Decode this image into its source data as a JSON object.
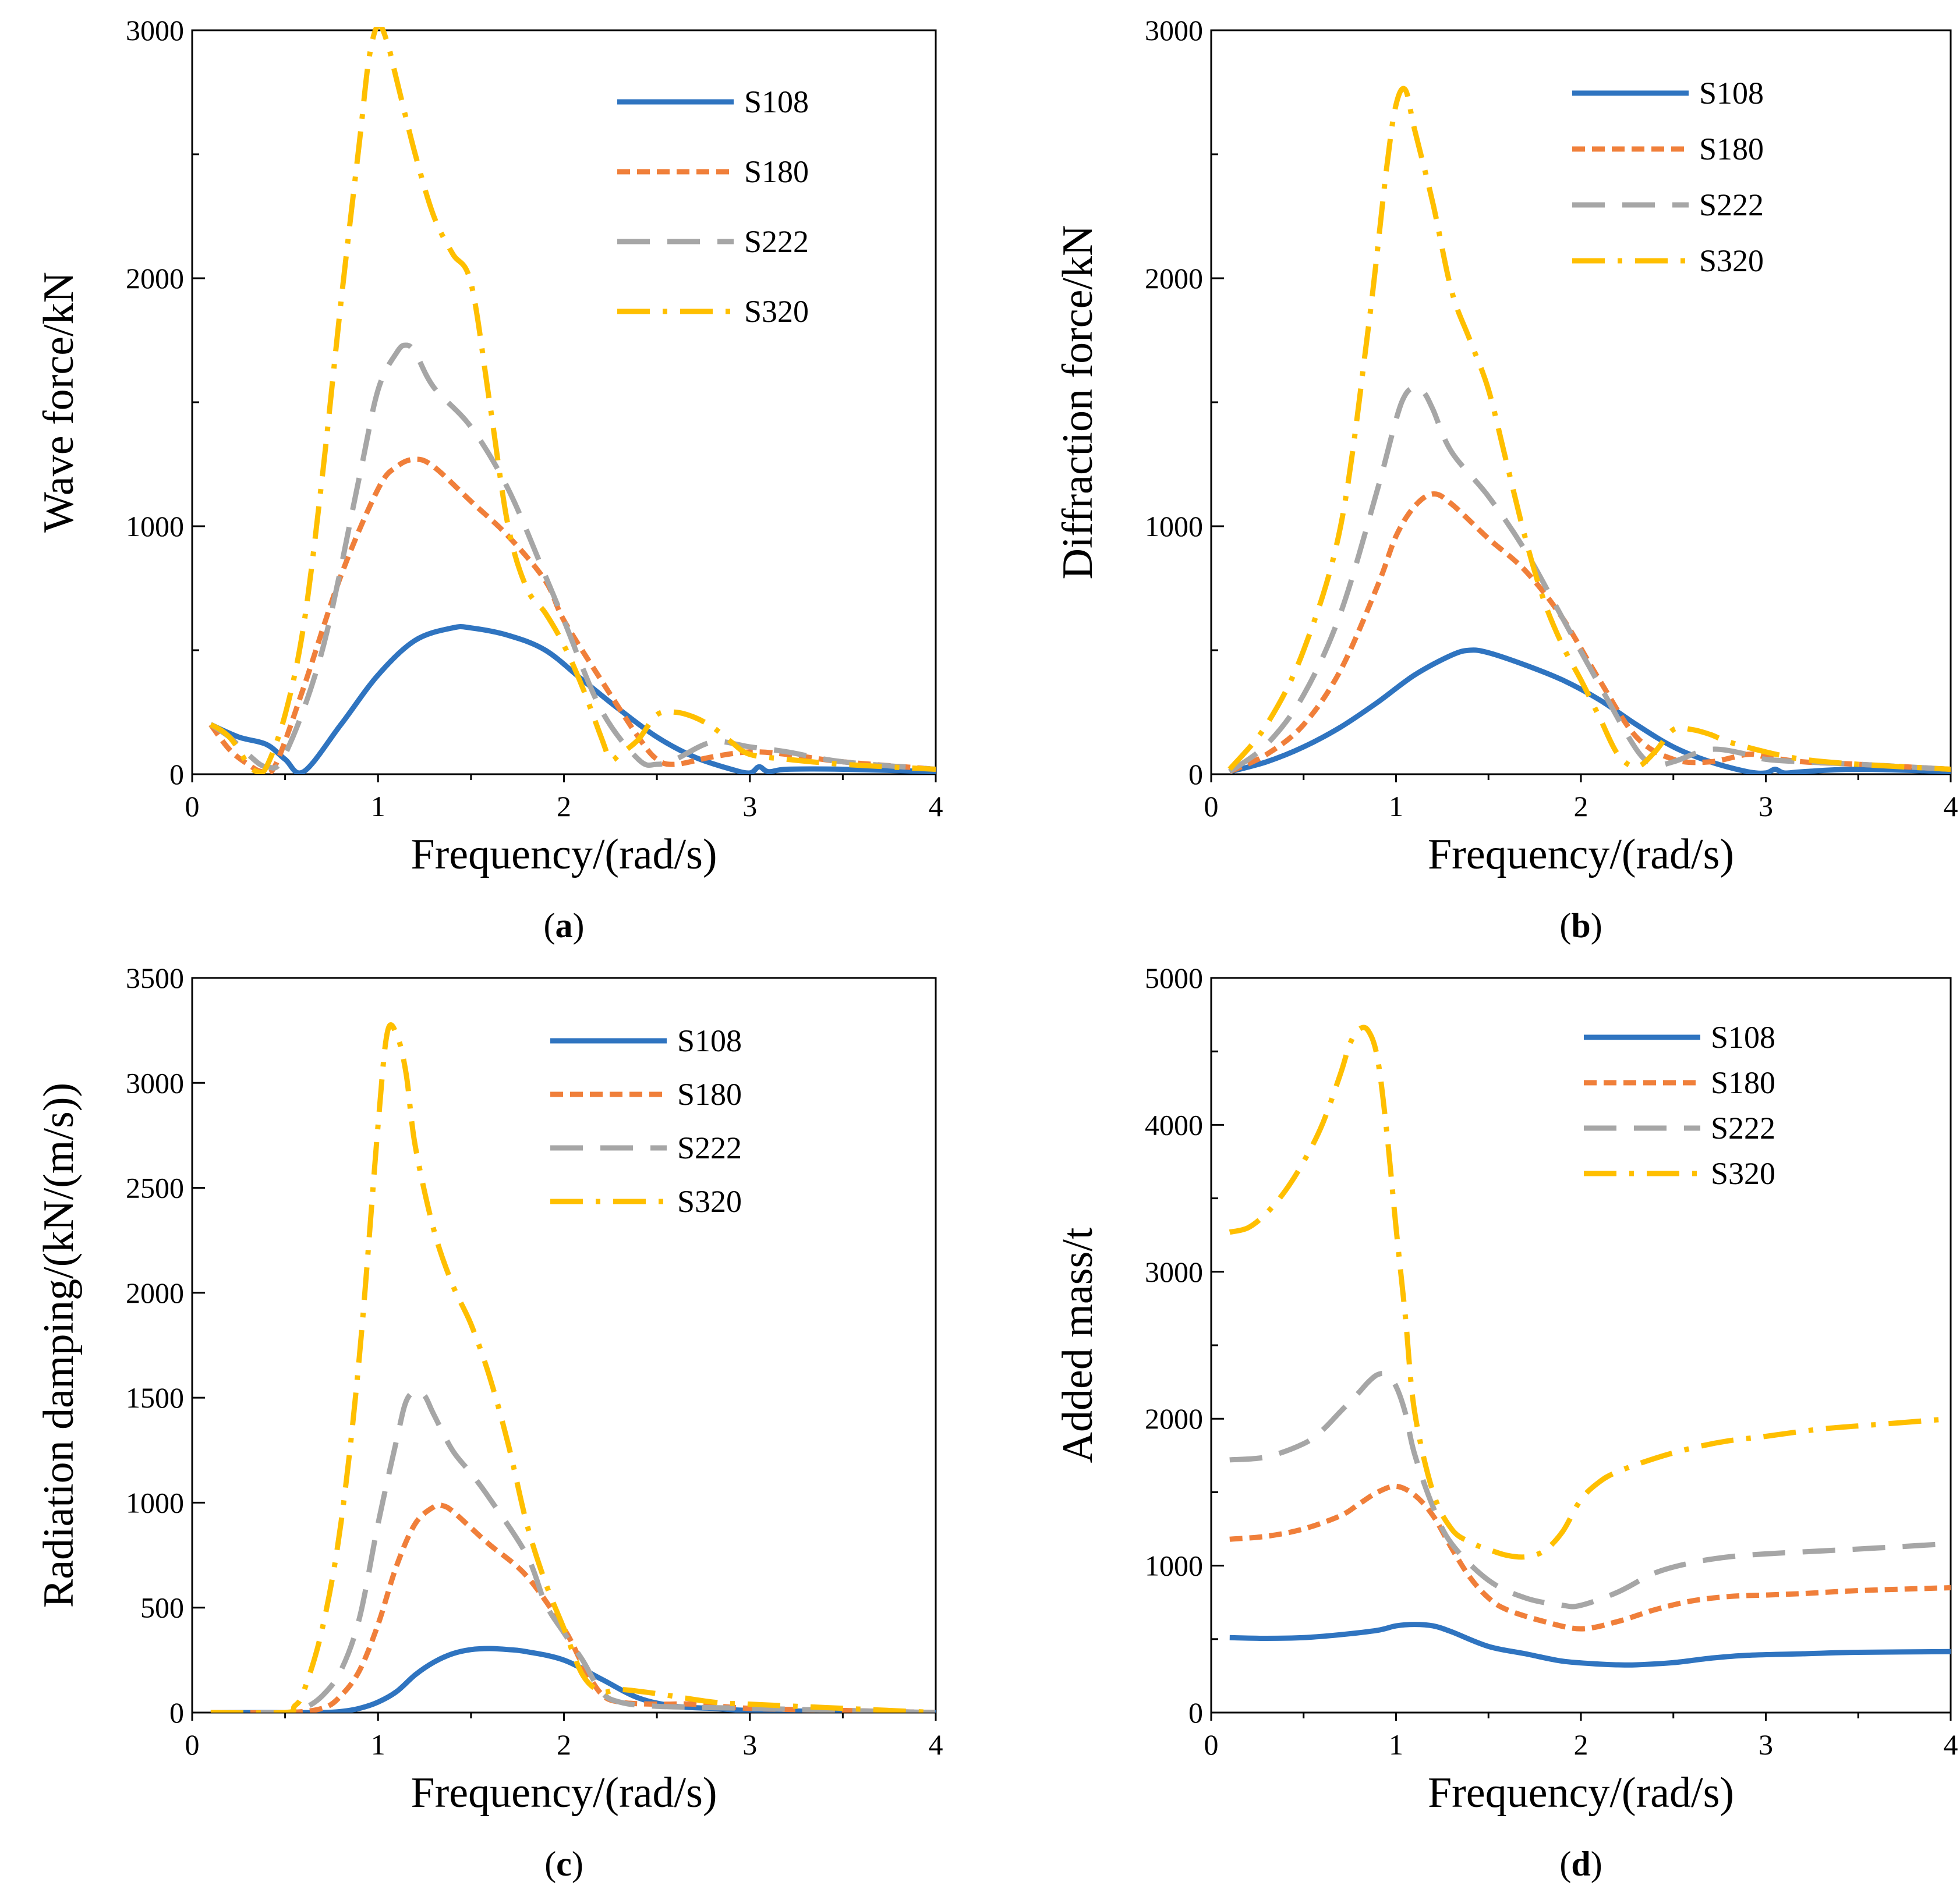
{
  "colors": {
    "S108": "#2f74c0",
    "S180": "#f07f3a",
    "S222": "#a6a6a6",
    "S320": "#ffbf00",
    "axis": "#000000"
  },
  "chart_data": [
    {
      "type": "line",
      "panel_label": "(a)",
      "panel_open": "(",
      "panel_letter": "a",
      "panel_close": ")",
      "xlabel": "Frequency/(rad/s)",
      "ylabel": "Wave force/kN",
      "xlim": [
        0,
        4
      ],
      "ylim": [
        0,
        3000
      ],
      "xticks": [
        0,
        1,
        2,
        3,
        4
      ],
      "yticks": [
        0,
        1000,
        2000,
        3000
      ],
      "minor_yticks": [
        500,
        1500,
        2500
      ],
      "legend_position": "top-right",
      "series": [
        {
          "name": "S108",
          "x": [
            0.1,
            0.25,
            0.4,
            0.5,
            0.6,
            0.8,
            1.0,
            1.2,
            1.4,
            1.5,
            1.7,
            1.9,
            2.1,
            2.3,
            2.5,
            2.7,
            2.9,
            3.0,
            3.05,
            3.1,
            3.2,
            3.5,
            4.0
          ],
          "y": [
            200,
            150,
            120,
            60,
            10,
            200,
            400,
            540,
            590,
            590,
            560,
            500,
            380,
            260,
            150,
            70,
            20,
            5,
            30,
            10,
            20,
            20,
            10
          ]
        },
        {
          "name": "S180",
          "x": [
            0.1,
            0.2,
            0.3,
            0.38,
            0.45,
            0.6,
            0.8,
            1.0,
            1.1,
            1.2,
            1.3,
            1.5,
            1.7,
            1.9,
            2.0,
            2.2,
            2.4,
            2.5,
            2.6,
            2.8,
            3.0,
            3.2,
            3.5,
            4.0
          ],
          "y": [
            200,
            100,
            40,
            10,
            40,
            350,
            800,
            1150,
            1240,
            1270,
            1240,
            1100,
            960,
            780,
            620,
            380,
            150,
            60,
            40,
            70,
            90,
            80,
            50,
            20
          ]
        },
        {
          "name": "S222",
          "x": [
            0.1,
            0.2,
            0.3,
            0.4,
            0.5,
            0.7,
            0.9,
            1.0,
            1.1,
            1.15,
            1.2,
            1.3,
            1.5,
            1.7,
            1.9,
            2.0,
            2.2,
            2.4,
            2.5,
            2.6,
            2.8,
            3.0,
            3.2,
            3.5,
            4.0
          ],
          "y": [
            200,
            150,
            80,
            30,
            80,
            500,
            1200,
            1550,
            1700,
            1730,
            1700,
            1560,
            1400,
            1150,
            800,
            620,
            260,
            60,
            40,
            60,
            130,
            110,
            90,
            50,
            20
          ]
        },
        {
          "name": "S320",
          "x": [
            0.1,
            0.15,
            0.2,
            0.25,
            0.3,
            0.35,
            0.4,
            0.5,
            0.6,
            0.7,
            0.8,
            0.9,
            0.95,
            1.0,
            1.05,
            1.1,
            1.2,
            1.3,
            1.4,
            1.5,
            1.6,
            1.7,
            1.8,
            1.9,
            2.0,
            2.1,
            2.2,
            2.25,
            2.3,
            2.4,
            2.5,
            2.6,
            2.7,
            2.8,
            2.9,
            3.0,
            3.2,
            3.5,
            4.0
          ],
          "y": [
            200,
            180,
            150,
            100,
            40,
            10,
            30,
            240,
            600,
            1200,
            1900,
            2550,
            2880,
            3020,
            2950,
            2800,
            2500,
            2250,
            2100,
            1980,
            1500,
            1000,
            750,
            650,
            520,
            350,
            150,
            60,
            80,
            140,
            240,
            250,
            230,
            190,
            130,
            80,
            60,
            40,
            20
          ]
        }
      ]
    },
    {
      "type": "line",
      "panel_label": "(b)",
      "panel_open": "(",
      "panel_letter": "b",
      "panel_close": ")",
      "xlabel": "Frequency/(rad/s)",
      "ylabel": "Diffraction force/kN",
      "xlim": [
        0,
        4
      ],
      "ylim": [
        0,
        3000
      ],
      "xticks": [
        0,
        1,
        2,
        3,
        4
      ],
      "yticks": [
        0,
        1000,
        2000,
        3000
      ],
      "minor_yticks": [
        500,
        1500,
        2500
      ],
      "legend_position": "top-right",
      "series": [
        {
          "name": "S108",
          "x": [
            0.1,
            0.3,
            0.5,
            0.7,
            0.9,
            1.1,
            1.3,
            1.4,
            1.5,
            1.7,
            1.9,
            2.1,
            2.3,
            2.5,
            2.7,
            2.9,
            3.0,
            3.05,
            3.1,
            3.2,
            3.5,
            4.0
          ],
          "y": [
            10,
            50,
            110,
            190,
            290,
            400,
            480,
            500,
            490,
            440,
            380,
            300,
            200,
            110,
            50,
            10,
            5,
            20,
            5,
            10,
            20,
            10
          ]
        },
        {
          "name": "S180",
          "x": [
            0.1,
            0.3,
            0.5,
            0.7,
            0.9,
            1.0,
            1.1,
            1.2,
            1.3,
            1.5,
            1.7,
            1.9,
            2.1,
            2.3,
            2.5,
            2.7,
            2.9,
            3.0,
            3.2,
            3.5,
            4.0
          ],
          "y": [
            10,
            80,
            200,
            420,
            760,
            960,
            1080,
            1130,
            1090,
            950,
            820,
            630,
            380,
            150,
            60,
            50,
            80,
            70,
            50,
            40,
            20
          ]
        },
        {
          "name": "S222",
          "x": [
            0.1,
            0.3,
            0.5,
            0.7,
            0.9,
            1.0,
            1.05,
            1.1,
            1.15,
            1.2,
            1.3,
            1.5,
            1.7,
            1.9,
            2.1,
            2.3,
            2.4,
            2.5,
            2.7,
            2.9,
            3.0,
            3.2,
            3.5,
            4.0
          ],
          "y": [
            10,
            120,
            320,
            650,
            1150,
            1430,
            1530,
            1560,
            1540,
            1470,
            1300,
            1120,
            900,
            630,
            360,
            100,
            40,
            50,
            100,
            80,
            60,
            50,
            40,
            20
          ]
        },
        {
          "name": "S320",
          "x": [
            0.1,
            0.3,
            0.5,
            0.7,
            0.85,
            0.95,
            1.0,
            1.05,
            1.1,
            1.2,
            1.3,
            1.4,
            1.5,
            1.6,
            1.7,
            1.8,
            1.9,
            2.0,
            2.1,
            2.2,
            2.3,
            2.4,
            2.5,
            2.6,
            2.7,
            2.8,
            3.0,
            3.2,
            3.5,
            4.0
          ],
          "y": [
            20,
            200,
            500,
            1000,
            1800,
            2450,
            2700,
            2760,
            2600,
            2300,
            1950,
            1750,
            1550,
            1250,
            950,
            700,
            520,
            380,
            230,
            80,
            30,
            90,
            180,
            180,
            160,
            130,
            90,
            60,
            40,
            20
          ]
        }
      ]
    },
    {
      "type": "line",
      "panel_label": "(c)",
      "panel_open": "(",
      "panel_letter": "c",
      "panel_close": ")",
      "xlabel": "Frequency/(rad/s)",
      "ylabel": "Radiation damping/(kN/(m/s))",
      "xlim": [
        0,
        4
      ],
      "ylim": [
        0,
        3500
      ],
      "xticks": [
        0,
        1,
        2,
        3,
        4
      ],
      "yticks": [
        0,
        500,
        1000,
        1500,
        2000,
        2500,
        3000,
        3500
      ],
      "minor_yticks": [],
      "legend_position": "top-right",
      "series": [
        {
          "name": "S108",
          "x": [
            0.1,
            0.5,
            0.7,
            0.8,
            0.9,
            1.0,
            1.1,
            1.2,
            1.3,
            1.4,
            1.5,
            1.6,
            1.7,
            1.8,
            2.0,
            2.2,
            2.4,
            2.6,
            2.8,
            3.0,
            3.5,
            4.0
          ],
          "y": [
            0,
            0,
            0,
            5,
            20,
            50,
            100,
            180,
            240,
            280,
            300,
            305,
            300,
            290,
            250,
            160,
            70,
            30,
            20,
            10,
            5,
            0
          ]
        },
        {
          "name": "S180",
          "x": [
            0.1,
            0.5,
            0.7,
            0.8,
            0.9,
            1.0,
            1.1,
            1.2,
            1.3,
            1.35,
            1.4,
            1.5,
            1.6,
            1.8,
            2.0,
            2.1,
            2.2,
            2.3,
            2.5,
            2.7,
            3.0,
            3.5,
            4.0
          ],
          "y": [
            0,
            0,
            20,
            80,
            200,
            420,
            700,
            900,
            980,
            985,
            960,
            880,
            800,
            650,
            400,
            230,
            90,
            50,
            40,
            40,
            20,
            10,
            0
          ]
        },
        {
          "name": "S222",
          "x": [
            0.1,
            0.5,
            0.6,
            0.7,
            0.8,
            0.9,
            1.0,
            1.1,
            1.15,
            1.2,
            1.25,
            1.3,
            1.4,
            1.5,
            1.6,
            1.8,
            1.9,
            2.0,
            2.1,
            2.2,
            2.3,
            2.5,
            3.0,
            3.5,
            4.0
          ],
          "y": [
            0,
            0,
            20,
            80,
            200,
            450,
            900,
            1300,
            1480,
            1530,
            1510,
            1420,
            1250,
            1140,
            1020,
            750,
            520,
            380,
            250,
            100,
            50,
            30,
            20,
            10,
            0
          ]
        },
        {
          "name": "S320",
          "x": [
            0.1,
            0.5,
            0.55,
            0.6,
            0.7,
            0.8,
            0.9,
            1.0,
            1.05,
            1.1,
            1.15,
            1.2,
            1.3,
            1.4,
            1.5,
            1.6,
            1.7,
            1.8,
            1.9,
            2.0,
            2.1,
            2.2,
            2.3,
            2.5,
            2.8,
            3.0,
            3.5,
            4.0
          ],
          "y": [
            0,
            0,
            30,
            100,
            400,
            900,
            1700,
            2800,
            3240,
            3230,
            3050,
            2700,
            2300,
            2040,
            1850,
            1600,
            1280,
            900,
            620,
            400,
            180,
            100,
            110,
            90,
            50,
            40,
            20,
            0
          ]
        }
      ]
    },
    {
      "type": "line",
      "panel_label": "(d)",
      "panel_open": "(",
      "panel_letter": "d",
      "panel_close": ")",
      "xlabel": "Frequency/(rad/s)",
      "ylabel": "Added mass/t",
      "xlim": [
        0,
        4
      ],
      "ylim": [
        0,
        5000
      ],
      "xticks": [
        0,
        1,
        2,
        3,
        4
      ],
      "yticks": [
        0,
        1000,
        2000,
        3000,
        4000,
        5000
      ],
      "minor_yticks": [
        500,
        1500,
        2500,
        3500,
        4500
      ],
      "legend_position": "top-right",
      "series": [
        {
          "name": "S108",
          "x": [
            0.1,
            0.3,
            0.5,
            0.7,
            0.9,
            1.0,
            1.1,
            1.2,
            1.3,
            1.5,
            1.7,
            1.9,
            2.1,
            2.2,
            2.3,
            2.5,
            2.7,
            2.9,
            3.2,
            3.5,
            4.0
          ],
          "y": [
            510,
            505,
            510,
            530,
            560,
            590,
            600,
            590,
            550,
            450,
            400,
            350,
            330,
            325,
            325,
            340,
            370,
            390,
            400,
            410,
            415
          ]
        },
        {
          "name": "S180",
          "x": [
            0.1,
            0.3,
            0.5,
            0.7,
            0.8,
            0.9,
            1.0,
            1.1,
            1.2,
            1.3,
            1.4,
            1.5,
            1.6,
            1.8,
            2.0,
            2.2,
            2.4,
            2.6,
            2.8,
            3.0,
            3.2,
            3.5,
            4.0
          ],
          "y": [
            1180,
            1200,
            1250,
            1340,
            1420,
            1500,
            1540,
            1480,
            1340,
            1120,
            920,
            780,
            700,
            620,
            570,
            620,
            700,
            760,
            790,
            800,
            810,
            830,
            850
          ]
        },
        {
          "name": "S222",
          "x": [
            0.1,
            0.3,
            0.5,
            0.6,
            0.7,
            0.8,
            0.85,
            0.9,
            0.95,
            1.0,
            1.05,
            1.1,
            1.2,
            1.3,
            1.5,
            1.7,
            1.9,
            2.0,
            2.2,
            2.4,
            2.6,
            2.8,
            3.0,
            3.3,
            3.6,
            4.0
          ],
          "y": [
            1720,
            1740,
            1830,
            1920,
            2050,
            2180,
            2250,
            2300,
            2300,
            2220,
            2040,
            1760,
            1400,
            1150,
            900,
            780,
            730,
            730,
            820,
            950,
            1020,
            1060,
            1080,
            1100,
            1120,
            1150
          ]
        },
        {
          "name": "S320",
          "x": [
            0.1,
            0.2,
            0.3,
            0.4,
            0.5,
            0.6,
            0.7,
            0.75,
            0.8,
            0.85,
            0.9,
            0.95,
            1.0,
            1.05,
            1.1,
            1.2,
            1.3,
            1.4,
            1.5,
            1.6,
            1.7,
            1.8,
            1.9,
            2.0,
            2.1,
            2.2,
            2.4,
            2.6,
            2.8,
            3.0,
            3.3,
            3.6,
            4.0
          ],
          "y": [
            3270,
            3300,
            3400,
            3550,
            3750,
            4000,
            4350,
            4550,
            4650,
            4640,
            4450,
            3950,
            3300,
            2700,
            2050,
            1500,
            1250,
            1160,
            1110,
            1070,
            1060,
            1100,
            1230,
            1450,
            1570,
            1640,
            1730,
            1800,
            1850,
            1880,
            1930,
            1960,
            2000
          ]
        }
      ]
    }
  ]
}
